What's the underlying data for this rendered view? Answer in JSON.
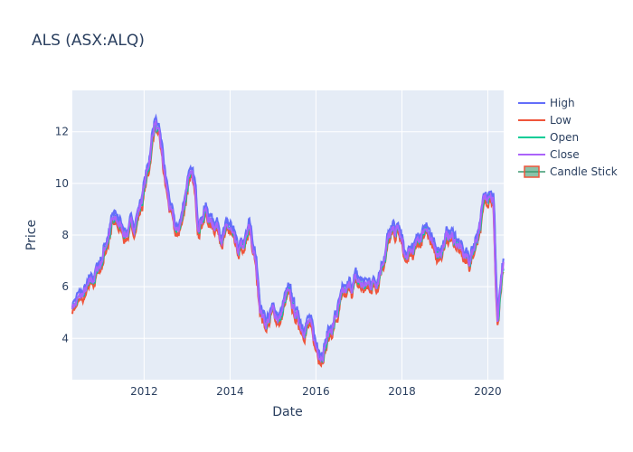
{
  "chart_data": {
    "type": "line",
    "title": "ALS (ASX:ALQ)",
    "xlabel": "Date",
    "ylabel": "Price",
    "xlim": [
      "2010-05-01",
      "2020-05-15"
    ],
    "ylim": [
      2.4,
      13.6
    ],
    "x_ticks": [
      {
        "date": "2012-01-01",
        "label": "2012"
      },
      {
        "date": "2014-01-01",
        "label": "2014"
      },
      {
        "date": "2016-01-01",
        "label": "2016"
      },
      {
        "date": "2018-01-01",
        "label": "2018"
      },
      {
        "date": "2020-01-01",
        "label": "2020"
      }
    ],
    "y_ticks": [
      4,
      6,
      8,
      10,
      12
    ],
    "grid": true,
    "legend_position": "right",
    "colors": {
      "High": "#636efa",
      "Low": "#ef553b",
      "Open": "#00cc96",
      "Close": "#ab63fa",
      "Candle Stick": "#3d9970",
      "plot_bg": "#e5ecf6"
    },
    "series": [
      {
        "name": "High"
      },
      {
        "name": "Low"
      },
      {
        "name": "Open"
      },
      {
        "name": "Close"
      },
      {
        "name": "Candle Stick"
      }
    ],
    "close_points": [
      [
        "2010-05-01",
        5.3
      ],
      [
        "2010-07-01",
        5.5
      ],
      [
        "2010-10-01",
        6.0
      ],
      [
        "2011-01-01",
        7.0
      ],
      [
        "2011-04-01",
        8.5
      ],
      [
        "2011-06-01",
        8.4
      ],
      [
        "2011-08-01",
        8.1
      ],
      [
        "2011-10-01",
        8.3
      ],
      [
        "2011-12-01",
        9.2
      ],
      [
        "2012-02-01",
        10.5
      ],
      [
        "2012-04-01",
        12.5
      ],
      [
        "2012-05-15",
        11.5
      ],
      [
        "2012-07-01",
        10.0
      ],
      [
        "2012-08-15",
        8.8
      ],
      [
        "2012-10-01",
        8.0
      ],
      [
        "2012-11-15",
        8.6
      ],
      [
        "2013-01-15",
        10.5
      ],
      [
        "2013-03-01",
        9.8
      ],
      [
        "2013-04-01",
        8.5
      ],
      [
        "2013-06-01",
        9.0
      ],
      [
        "2013-07-15",
        8.5
      ],
      [
        "2013-09-01",
        8.5
      ],
      [
        "2013-11-01",
        8.0
      ],
      [
        "2014-01-01",
        8.2
      ],
      [
        "2014-03-01",
        7.2
      ],
      [
        "2014-05-01",
        7.5
      ],
      [
        "2014-06-15",
        8.2
      ],
      [
        "2014-08-01",
        7.0
      ],
      [
        "2014-09-15",
        5.2
      ],
      [
        "2014-11-01",
        4.6
      ],
      [
        "2015-01-01",
        5.0
      ],
      [
        "2015-03-01",
        4.8
      ],
      [
        "2015-05-01",
        5.7
      ],
      [
        "2015-07-01",
        5.0
      ],
      [
        "2015-09-01",
        4.5
      ],
      [
        "2015-11-01",
        4.6
      ],
      [
        "2016-01-01",
        3.6
      ],
      [
        "2016-02-15",
        3.5
      ],
      [
        "2016-04-01",
        4.0
      ],
      [
        "2016-06-01",
        4.6
      ],
      [
        "2016-08-01",
        5.4
      ],
      [
        "2016-10-01",
        5.8
      ],
      [
        "2016-12-01",
        6.2
      ],
      [
        "2017-03-01",
        6.0
      ],
      [
        "2017-06-01",
        6.3
      ],
      [
        "2017-09-01",
        7.8
      ],
      [
        "2017-12-01",
        8.2
      ],
      [
        "2018-02-01",
        7.0
      ],
      [
        "2018-05-01",
        7.5
      ],
      [
        "2018-08-01",
        8.5
      ],
      [
        "2018-10-01",
        7.2
      ],
      [
        "2018-12-01",
        7.5
      ],
      [
        "2019-02-01",
        8.0
      ],
      [
        "2019-04-01",
        7.8
      ],
      [
        "2019-06-01",
        7.2
      ],
      [
        "2019-08-01",
        7.0
      ],
      [
        "2019-10-01",
        8.0
      ],
      [
        "2019-12-01",
        9.3
      ],
      [
        "2020-01-15",
        9.9
      ],
      [
        "2020-02-15",
        9.5
      ],
      [
        "2020-03-10",
        6.0
      ],
      [
        "2020-03-25",
        4.6
      ],
      [
        "2020-04-15",
        5.8
      ],
      [
        "2020-05-15",
        6.7
      ]
    ]
  }
}
